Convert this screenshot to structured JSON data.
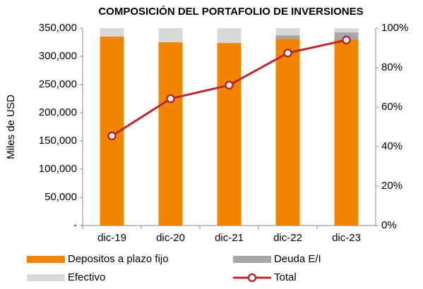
{
  "chart_data": {
    "type": "bar-line",
    "title": "COMPOSICIÓN DEL PORTAFOLIO DE INVERSIONES",
    "ylabel": "Miles de USD",
    "categories": [
      "dic-19",
      "dic-20",
      "dic-21",
      "dic-22",
      "dic-23"
    ],
    "series": [
      {
        "name": "Depositos a plazo fijo",
        "color": "#f28500",
        "type": "bar",
        "axis": "y2",
        "values": [
          95.7,
          92.9,
          92.5,
          94.6,
          94.3
        ]
      },
      {
        "name": "Deuda E/I",
        "color": "#a6a6a6",
        "type": "bar",
        "axis": "y2",
        "values": [
          0,
          0,
          0,
          1.8,
          3.6
        ]
      },
      {
        "name": "Efectivo",
        "color": "#d9d9d9",
        "type": "bar",
        "axis": "y2",
        "values": [
          4.3,
          7.1,
          7.5,
          3.6,
          2.1
        ]
      },
      {
        "name": "Total",
        "color": "#b8282e",
        "type": "line",
        "axis": "y",
        "values": [
          159000,
          225000,
          249000,
          306000,
          329000
        ]
      }
    ],
    "ylim": [
      0,
      350000
    ],
    "yticks": [
      {
        "value": 0,
        "label": "-"
      },
      {
        "value": 50000,
        "label": "50,000"
      },
      {
        "value": 100000,
        "label": "100,000"
      },
      {
        "value": 150000,
        "label": "150,000"
      },
      {
        "value": 200000,
        "label": "200,000"
      },
      {
        "value": 250000,
        "label": "250,000"
      },
      {
        "value": 300000,
        "label": "300,000"
      },
      {
        "value": 350000,
        "label": "350,000"
      }
    ],
    "y2lim": [
      0,
      100
    ],
    "y2ticks": [
      {
        "value": 0,
        "label": "0%"
      },
      {
        "value": 20,
        "label": "20%"
      },
      {
        "value": 40,
        "label": "40%"
      },
      {
        "value": 60,
        "label": "60%"
      },
      {
        "value": 80,
        "label": "80%"
      },
      {
        "value": 100,
        "label": "100%"
      }
    ],
    "legend": "bottom"
  }
}
